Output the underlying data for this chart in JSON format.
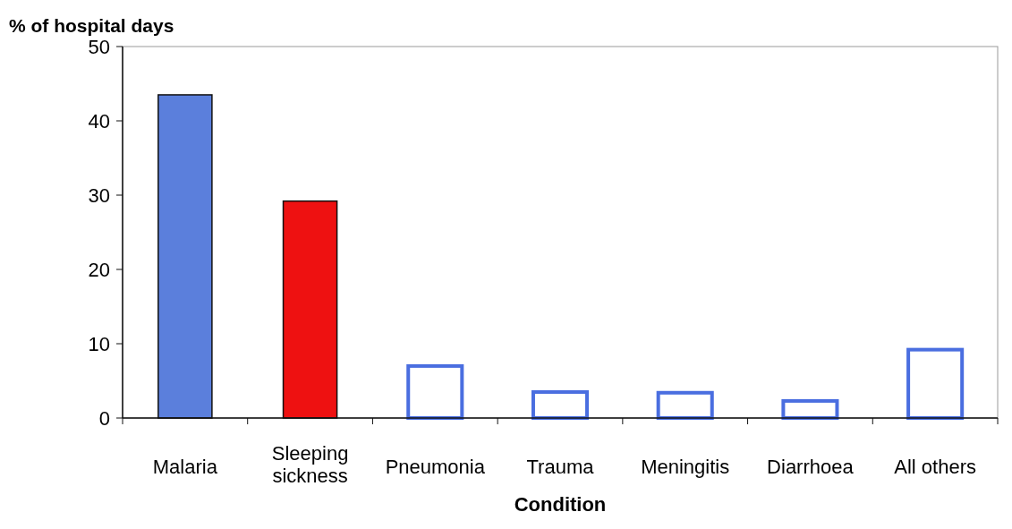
{
  "chart_data": {
    "type": "bar",
    "ylabel": "% of hospital days",
    "xlabel": "Condition",
    "categories": [
      "Malaria",
      "Sleeping sickness",
      "Pneumonia",
      "Trauma",
      "Meningitis",
      "Diarrhoea",
      "All others"
    ],
    "values": [
      43.5,
      29.2,
      7.0,
      3.5,
      3.4,
      2.3,
      9.2
    ],
    "colors": [
      "#5b7fdc",
      "#ee1111",
      "#ffffff",
      "#ffffff",
      "#ffffff",
      "#ffffff",
      "#ffffff"
    ],
    "ylim": [
      0,
      50
    ],
    "yticks": [
      0,
      10,
      20,
      30,
      40,
      50
    ],
    "grid": false
  }
}
